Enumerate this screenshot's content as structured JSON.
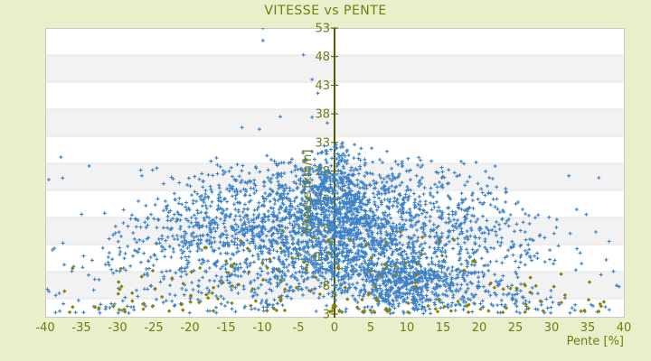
{
  "window": {
    "title": "VITESSE vs PENTE"
  },
  "chart_data": {
    "type": "scatter",
    "title": "VITESSE vs PENTE",
    "xlabel": "Pente [%]",
    "ylabel": "Vitesse [km/h]",
    "xlim": [
      -40,
      40
    ],
    "ylim": [
      3,
      53
    ],
    "x_ticks": [
      -40,
      -35,
      -30,
      -25,
      -20,
      -15,
      -10,
      -5,
      0,
      5,
      10,
      15,
      20,
      25,
      30,
      35,
      40
    ],
    "y_ticks": [
      3,
      8,
      13,
      18,
      23,
      28,
      33,
      38,
      43,
      48,
      53
    ],
    "grid": "horizontal-bands",
    "legend_position": "none",
    "colors": {
      "page_background": "#e9efca",
      "plot_background": "#ffffff",
      "band_fill": "#f2f2f2",
      "band_line": "#e4e4e4",
      "plot_border": "#c9c9c9",
      "axis_line": "#4f5c00",
      "text_olive": "#6f7d12",
      "series_blue": "#3d81c6",
      "series_olive": "#848400"
    },
    "series": [
      {
        "name": "vitesse-vs-pente-points-bleus",
        "marker": "plus",
        "marker_size": 5,
        "color": "#3d81c6",
        "approx_count": 3900,
        "description": "dense cloud centered near pente 0, vitesse 5-33 km/h, fan-like streaks, width shrinking with speed",
        "generator": {
          "seed": 1337,
          "main": {
            "n": 2300,
            "y_base": 5,
            "y_span": 27,
            "w_base": 4,
            "w_scale": 42,
            "w_pow": 1.25
          },
          "stem": {
            "n": 350,
            "x_sigma": 2.4,
            "y_min": 9,
            "y_span": 24
          },
          "cluster": {
            "n": 420,
            "x_mu": 9,
            "x_sigma": 4.5,
            "y_mu": 8.5,
            "y_sigma": 2.3
          },
          "wide": {
            "n": 170,
            "x_half": 40,
            "y_base": 3.2,
            "y_span": 28,
            "y_pow": 2.4
          },
          "arcs": {
            "count": 38,
            "pts_min": 10,
            "pts_var": 14,
            "x_min": 7,
            "x_var": 31,
            "y0_min": 14,
            "y0_var": 19,
            "right_bias": 0.62
          }
        },
        "visible_outliers": [
          [
            -9.9,
            53.0
          ],
          [
            -9.9,
            50.8
          ],
          [
            -4.3,
            48.3
          ],
          [
            -3.1,
            44.0
          ],
          [
            -2.3,
            41.6
          ],
          [
            -7.5,
            37.5
          ],
          [
            -3.1,
            37.4
          ],
          [
            -1.0,
            36.4
          ],
          [
            -12.8,
            35.6
          ],
          [
            -10.4,
            35.3
          ],
          [
            -39.5,
            26.5
          ],
          [
            -39.0,
            14.2
          ]
        ]
      },
      {
        "name": "vitesse-vs-pente-points-olive",
        "marker": "diamond",
        "marker_size": 5,
        "color": "#848400",
        "approx_count": 180,
        "description": "sparse olive diamonds, mostly low speed 3-13 km/h across full slope range, a few mid-cloud",
        "generator": {
          "seed": 2024,
          "low": {
            "n": 150,
            "y_base": 3.3,
            "y_span": 9,
            "y_pow": 1.8,
            "x_half": 38,
            "x_pow": 1.25,
            "right_share": 0.55
          },
          "mid": {
            "n": 30,
            "y_base": 11,
            "y_span": 7,
            "x_half": 28
          }
        }
      }
    ]
  }
}
